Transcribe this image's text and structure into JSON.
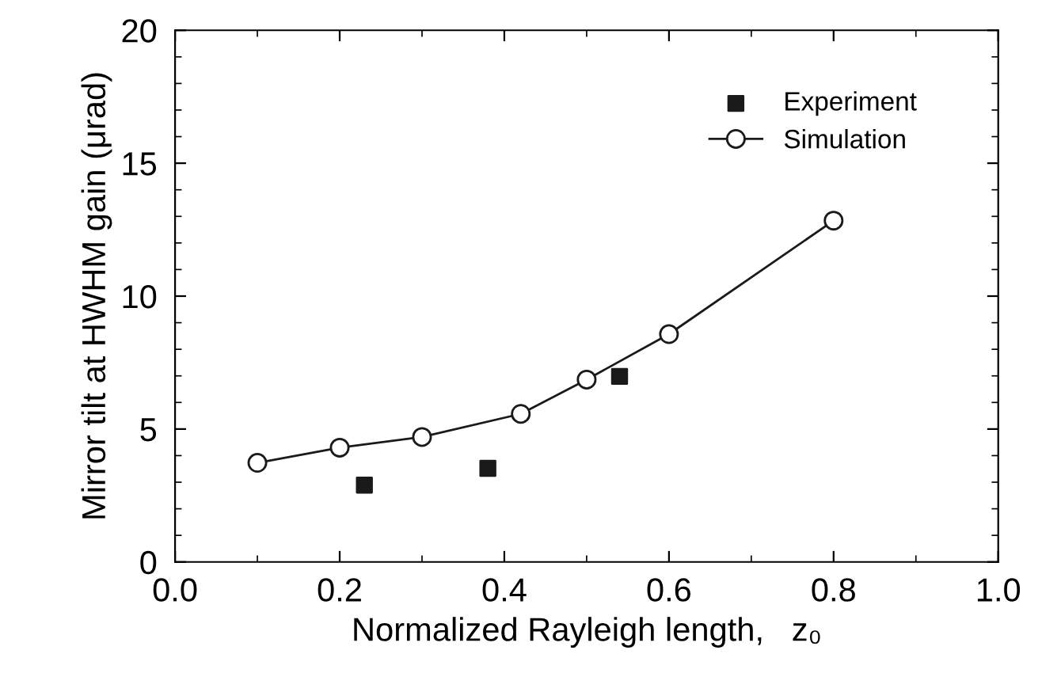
{
  "chart_data": {
    "type": "scatter",
    "xlabel": "Normalized Rayleigh length,   z₀",
    "ylabel": "Mirror tilt at HWHM gain (μrad)",
    "xlim": [
      0.0,
      1.0
    ],
    "xticks": [
      {
        "value": 0.0,
        "label": "0.0"
      },
      {
        "value": 0.2,
        "label": "0.2"
      },
      {
        "value": 0.4,
        "label": "0.4"
      },
      {
        "value": 0.6,
        "label": "0.6"
      },
      {
        "value": 0.8,
        "label": "0.8"
      },
      {
        "value": 1.0,
        "label": "1.0"
      }
    ],
    "ylim": [
      0,
      20
    ],
    "yticks": [
      0,
      5,
      10,
      15,
      20
    ],
    "grid": false,
    "legend": "top right",
    "series": [
      {
        "name": "Experiment",
        "marker": "square",
        "color": "#1a1a1a",
        "x": [
          0.23,
          0.38,
          0.54
        ],
        "values": [
          2.89,
          3.52,
          6.98
        ]
      },
      {
        "name": "Simulation",
        "type": "line",
        "marker": "circle",
        "line_style": "solid",
        "color": "#1a1a1a",
        "x": [
          0.1,
          0.2,
          0.3,
          0.42,
          0.5,
          0.6,
          0.8
        ],
        "values": [
          3.73,
          4.3,
          4.7,
          5.57,
          6.86,
          8.57,
          12.84
        ]
      }
    ]
  }
}
